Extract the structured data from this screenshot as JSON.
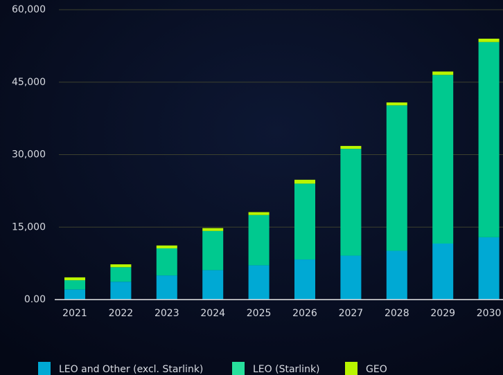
{
  "chart_data": {
    "type": "stacked_bar",
    "categories": [
      "2021",
      "2022",
      "2023",
      "2024",
      "2025",
      "2026",
      "2027",
      "2028",
      "2029",
      "2030"
    ],
    "series": [
      {
        "name": "LEO and Other (excl. Starlink)",
        "color": "#00a9d4",
        "values": [
          2100,
          3700,
          5000,
          6100,
          7100,
          8300,
          9100,
          10100,
          11600,
          12900
        ]
      },
      {
        "name": "LEO (Starlink)",
        "color": "#00c98f",
        "values": [
          1900,
          3000,
          5600,
          8100,
          10400,
          15700,
          22100,
          30100,
          34900,
          40400
        ]
      },
      {
        "name": "GEO",
        "color": "#b9f500",
        "values": [
          600,
          600,
          600,
          600,
          600,
          800,
          600,
          600,
          700,
          700
        ]
      }
    ],
    "ylim": [
      0,
      60000
    ],
    "yticks": [
      {
        "value": 0,
        "label": "0.00"
      },
      {
        "value": 15000,
        "label": "15,000"
      },
      {
        "value": 30000,
        "label": "30,000"
      },
      {
        "value": 45000,
        "label": "45,000"
      },
      {
        "value": 60000,
        "label": "60,000"
      }
    ],
    "grid": true
  }
}
